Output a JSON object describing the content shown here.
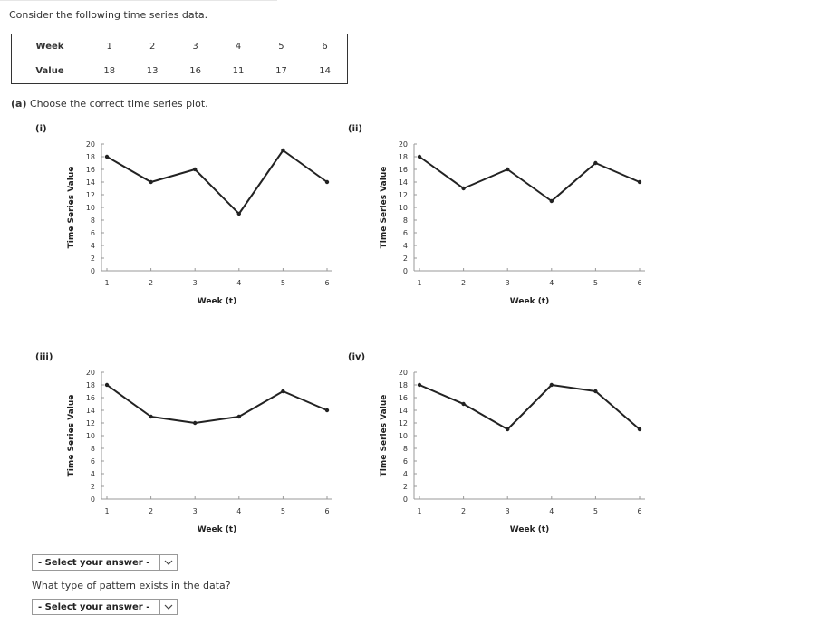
{
  "intro": "Consider the following time series data.",
  "table": {
    "week_label": "Week",
    "value_label": "Value",
    "weeks": [
      "1",
      "2",
      "3",
      "4",
      "5",
      "6"
    ],
    "values": [
      "18",
      "13",
      "16",
      "11",
      "17",
      "14"
    ]
  },
  "part_a": {
    "tag": "(a)",
    "prompt": "Choose the correct time series plot."
  },
  "plot_labels": [
    "(i)",
    "(ii)",
    "(iii)",
    "(iv)"
  ],
  "chart_data": [
    {
      "type": "line",
      "x": [
        1,
        2,
        3,
        4,
        5,
        6
      ],
      "y": [
        18,
        14,
        16,
        9,
        19,
        14
      ],
      "xlabel": "Week (t)",
      "ylabel": "Time Series Value",
      "ylim": [
        0,
        20
      ],
      "yticks": [
        0,
        2,
        4,
        6,
        8,
        10,
        12,
        14,
        16,
        18,
        20
      ],
      "xticks": [
        1,
        2,
        3,
        4,
        5,
        6
      ],
      "grid": false
    },
    {
      "type": "line",
      "x": [
        1,
        2,
        3,
        4,
        5,
        6
      ],
      "y": [
        18,
        13,
        16,
        11,
        17,
        14
      ],
      "xlabel": "Week (t)",
      "ylabel": "Time Series Value",
      "ylim": [
        0,
        20
      ],
      "yticks": [
        0,
        2,
        4,
        6,
        8,
        10,
        12,
        14,
        16,
        18,
        20
      ],
      "xticks": [
        1,
        2,
        3,
        4,
        5,
        6
      ],
      "grid": false
    },
    {
      "type": "line",
      "x": [
        1,
        2,
        3,
        4,
        5,
        6
      ],
      "y": [
        18,
        13,
        12,
        13,
        17,
        14
      ],
      "xlabel": "Week (t)",
      "ylabel": "Time Series Value",
      "ylim": [
        0,
        20
      ],
      "yticks": [
        0,
        2,
        4,
        6,
        8,
        10,
        12,
        14,
        16,
        18,
        20
      ],
      "xticks": [
        1,
        2,
        3,
        4,
        5,
        6
      ],
      "grid": false
    },
    {
      "type": "line",
      "x": [
        1,
        2,
        3,
        4,
        5,
        6
      ],
      "y": [
        18,
        15,
        11,
        18,
        17,
        11
      ],
      "xlabel": "Week (t)",
      "ylabel": "Time Series Value",
      "ylim": [
        0,
        20
      ],
      "yticks": [
        0,
        2,
        4,
        6,
        8,
        10,
        12,
        14,
        16,
        18,
        20
      ],
      "xticks": [
        1,
        2,
        3,
        4,
        5,
        6
      ],
      "grid": false
    }
  ],
  "select1": {
    "label": "- Select your answer -",
    "icon": "chevron-down-icon"
  },
  "question2": "What type of pattern exists in the data?",
  "select2": {
    "label": "- Select your answer -",
    "icon": "chevron-down-icon"
  }
}
